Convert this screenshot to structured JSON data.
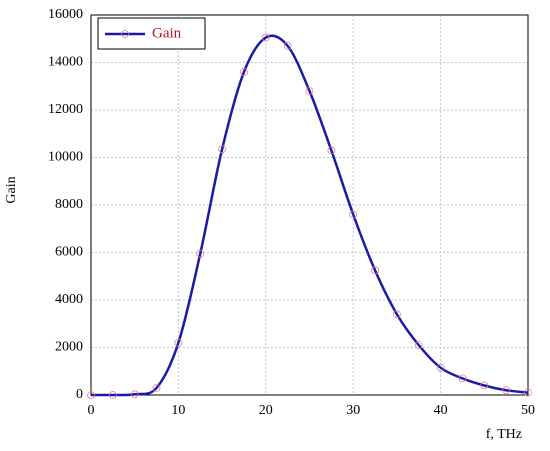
{
  "chart_data": {
    "type": "line",
    "x_label": "f, THz",
    "y_label": "Gain",
    "x": [
      0,
      2.5,
      5,
      7.5,
      10,
      12.5,
      15,
      17.5,
      20,
      22.5,
      25,
      27.5,
      30,
      32.5,
      35,
      37.5,
      40,
      42.5,
      45,
      47.5,
      50
    ],
    "series": [
      {
        "name": "Gain",
        "color": "#1a1aa8",
        "marker_color": "#e07aa0",
        "values": [
          0,
          0,
          30,
          300,
          2200,
          5950,
          10350,
          13600,
          15050,
          14700,
          12800,
          10300,
          7600,
          5250,
          3400,
          2100,
          1150,
          700,
          400,
          200,
          100
        ]
      }
    ],
    "xlim": [
      0,
      50
    ],
    "xticks": [
      0,
      10,
      20,
      30,
      40,
      50
    ],
    "ylim": [
      0,
      16000
    ],
    "yticks": [
      0,
      2000,
      4000,
      6000,
      8000,
      10000,
      12000,
      14000,
      16000
    ],
    "grid": true,
    "legend": "upper left"
  }
}
